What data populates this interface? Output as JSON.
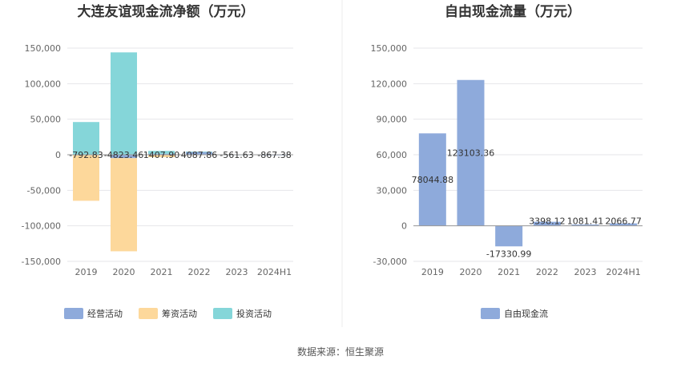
{
  "source_note": "数据来源：恒生聚源",
  "chart_data": [
    {
      "type": "bar",
      "stacked": true,
      "title": "大连友谊现金流净额（万元）",
      "categories": [
        "2019",
        "2020",
        "2021",
        "2022",
        "2023",
        "2024H1"
      ],
      "y_ticks": [
        "150,000",
        "100,000",
        "50,000",
        "0",
        "-50,000",
        "-100,000",
        "-150,000"
      ],
      "ylim": [
        -150000,
        150000
      ],
      "grid": true,
      "legend_position": "bottom",
      "series": [
        {
          "name": "经营活动",
          "color": "#8eaadb",
          "values": [
            -792.83,
            -4823.46,
            1407.9,
            4087.86,
            -561.63,
            -867.38
          ],
          "labels": [
            "-792.83",
            "-4823.46",
            "1407.90",
            "4087.86",
            "-561.63",
            "-867.38"
          ]
        },
        {
          "name": "筹资活动",
          "color": "#fdd89b",
          "values": [
            -64000,
            -131000,
            -3500,
            -200,
            0,
            0
          ]
        },
        {
          "name": "投资活动",
          "color": "#85d6d9",
          "values": [
            46000,
            144000,
            4000,
            300,
            0,
            0
          ]
        }
      ]
    },
    {
      "type": "bar",
      "title": "自由现金流量（万元）",
      "categories": [
        "2019",
        "2020",
        "2021",
        "2022",
        "2023",
        "2024H1"
      ],
      "y_ticks": [
        "150,000",
        "120,000",
        "90,000",
        "60,000",
        "30,000",
        "0",
        "-30,000"
      ],
      "ylim": [
        -30000,
        150000
      ],
      "grid": true,
      "legend_position": "bottom",
      "series": [
        {
          "name": "自由现金流",
          "color": "#8eaadb",
          "values": [
            78044.88,
            123103.36,
            -17330.99,
            3398.12,
            1081.41,
            2066.77
          ],
          "labels": [
            "78044.88",
            "123103.36",
            "-17330.99",
            "3398.12",
            "1081.41",
            "2066.77"
          ]
        }
      ]
    }
  ]
}
